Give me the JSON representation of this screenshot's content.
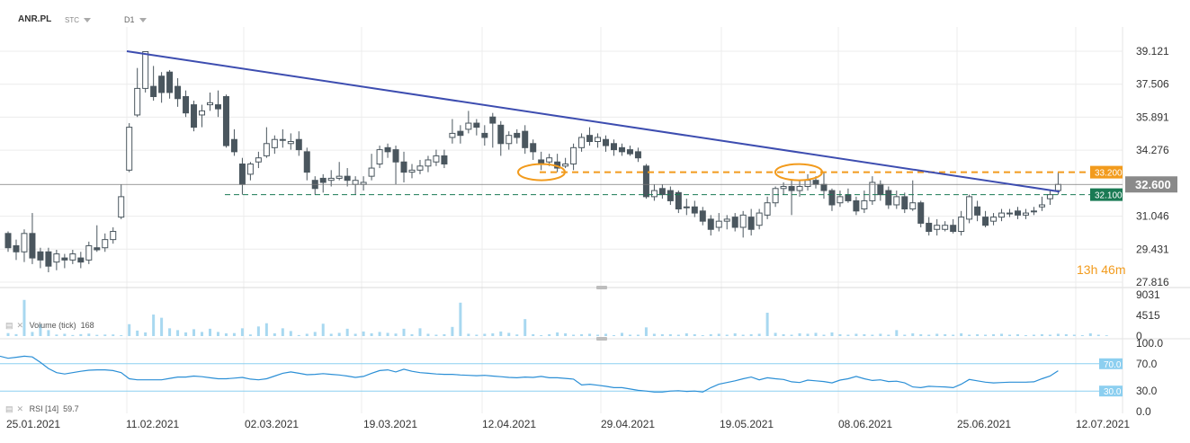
{
  "header": {
    "symbol": "ANR.PL",
    "type": "STC",
    "timeframe": "D1"
  },
  "countdown": {
    "hours": "13",
    "h_unit": "h",
    "minutes": "46",
    "m_unit": "m"
  },
  "volume_label": {
    "name": "Volume",
    "param": "(tick)",
    "value": "168"
  },
  "rsi_label": {
    "name": "RSI",
    "param": "[14]",
    "value": "59.7"
  },
  "colors": {
    "bull_fill": "#ffffff",
    "bear_fill": "#4a565e",
    "candle_stroke": "#4a565e",
    "trendline": "#3d4db0",
    "resistance": "#f29b1d",
    "support": "#1a7a54",
    "last_price_line": "#7a7a7a",
    "volume_bar": "#a8d8f0",
    "rsi_line": "#2b8fd6",
    "rsi_level": "#8ccff0",
    "grid": "#ececec",
    "axis_text": "#333333"
  },
  "chart_data": [
    {
      "type": "candlestick",
      "title": "ANR.PL",
      "price_axis_ticks": [
        "39.121",
        "37.506",
        "35.891",
        "34.276",
        "32.600",
        "31.046",
        "29.431",
        "27.816"
      ],
      "ylim": [
        27.816,
        39.121
      ],
      "x_tick_labels": [
        "25.01.2021",
        "11.02.2021",
        "02.03.2021",
        "19.03.2021",
        "12.04.2021",
        "29.04.2021",
        "19.05.2021",
        "08.06.2021",
        "25.06.2021",
        "12.07.2021"
      ],
      "last_price": "32.600",
      "levels": [
        {
          "name": "resistance",
          "value": 33.2,
          "label": "33.200",
          "style": "dashed"
        },
        {
          "name": "support",
          "value": 32.1,
          "label": "32.100",
          "style": "dashed"
        }
      ],
      "trendline": {
        "from": {
          "date": "10.02.2021",
          "value": 39.121
        },
        "to": {
          "date": "02.07.2021",
          "value": 32.25
        }
      },
      "highlights": [
        {
          "date": "16.04.2021",
          "value": 33.2
        },
        {
          "date": "25.05.2021",
          "value": 33.2
        }
      ],
      "candles": [
        [
          30.2,
          29.5,
          30.3,
          29.3
        ],
        [
          29.6,
          29.3,
          29.9,
          28.9
        ],
        [
          29.3,
          30.2,
          30.4,
          28.8
        ],
        [
          30.2,
          29.0,
          31.2,
          28.7
        ],
        [
          29.3,
          28.9,
          29.5,
          28.5
        ],
        [
          29.3,
          28.6,
          29.5,
          28.3
        ],
        [
          28.8,
          29.2,
          29.4,
          28.4
        ],
        [
          29.0,
          28.9,
          29.2,
          28.5
        ],
        [
          28.9,
          29.2,
          29.4,
          28.7
        ],
        [
          29.0,
          28.8,
          29.3,
          28.5
        ],
        [
          28.9,
          29.6,
          29.8,
          28.7
        ],
        [
          29.5,
          29.4,
          30.6,
          29.3
        ],
        [
          29.5,
          29.9,
          30.2,
          29.3
        ],
        [
          29.9,
          30.3,
          30.5,
          29.7
        ],
        [
          31.0,
          32.0,
          32.6,
          30.9
        ],
        [
          33.3,
          35.4,
          35.6,
          33.2
        ],
        [
          36.0,
          37.3,
          38.3,
          35.9
        ],
        [
          37.3,
          39.1,
          39.1,
          37.1
        ],
        [
          37.4,
          36.9,
          38.4,
          36.7
        ],
        [
          37.9,
          37.1,
          38.1,
          36.6
        ],
        [
          38.1,
          37.1,
          38.2,
          36.8
        ],
        [
          37.4,
          36.8,
          37.8,
          36.4
        ],
        [
          36.9,
          36.1,
          37.2,
          35.9
        ],
        [
          36.5,
          35.4,
          36.7,
          35.2
        ],
        [
          36.0,
          36.2,
          36.5,
          35.4
        ],
        [
          36.5,
          36.6,
          37.1,
          36.2
        ],
        [
          36.5,
          36.3,
          37.2,
          35.9
        ],
        [
          36.9,
          34.5,
          37.0,
          34.4
        ],
        [
          34.8,
          34.2,
          35.3,
          34.0
        ],
        [
          33.6,
          32.6,
          33.9,
          32.1
        ],
        [
          33.1,
          33.6,
          33.7,
          32.8
        ],
        [
          33.7,
          33.9,
          34.2,
          33.4
        ],
        [
          34.0,
          34.6,
          35.4,
          33.9
        ],
        [
          34.4,
          34.8,
          35.0,
          34.1
        ],
        [
          34.8,
          34.8,
          35.3,
          34.4
        ],
        [
          34.6,
          34.7,
          35.1,
          34.3
        ],
        [
          34.8,
          34.3,
          35.2,
          34.0
        ],
        [
          34.2,
          33.2,
          34.4,
          32.8
        ],
        [
          32.8,
          32.4,
          33.0,
          32.1
        ],
        [
          32.9,
          32.7,
          33.1,
          32.2
        ],
        [
          32.8,
          32.9,
          33.3,
          32.5
        ],
        [
          32.9,
          33.0,
          33.7,
          32.8
        ],
        [
          33.0,
          32.8,
          33.4,
          32.5
        ],
        [
          32.6,
          32.8,
          33.0,
          32.1
        ],
        [
          32.6,
          32.7,
          33.0,
          32.3
        ],
        [
          33.0,
          33.4,
          34.1,
          32.8
        ],
        [
          33.6,
          34.3,
          34.5,
          33.4
        ],
        [
          34.4,
          34.2,
          34.6,
          33.9
        ],
        [
          34.3,
          33.7,
          34.5,
          32.6
        ],
        [
          33.7,
          33.2,
          34.2,
          32.7
        ],
        [
          33.2,
          33.3,
          33.6,
          32.9
        ],
        [
          33.3,
          33.5,
          33.8,
          33.1
        ],
        [
          33.5,
          33.8,
          34.0,
          33.2
        ],
        [
          33.7,
          34.0,
          34.3,
          33.5
        ],
        [
          34.0,
          33.6,
          34.3,
          33.4
        ],
        [
          34.9,
          35.1,
          35.8,
          34.6
        ],
        [
          35.2,
          35.0,
          35.5,
          34.6
        ],
        [
          35.3,
          35.6,
          36.2,
          35.1
        ],
        [
          35.6,
          35.4,
          35.8,
          35.0
        ],
        [
          35.1,
          34.9,
          35.5,
          34.5
        ],
        [
          35.9,
          35.6,
          36.1,
          34.4
        ],
        [
          35.5,
          34.6,
          35.7,
          34.0
        ],
        [
          34.6,
          35.0,
          35.2,
          34.3
        ],
        [
          35.1,
          34.9,
          35.3,
          34.6
        ],
        [
          35.2,
          34.4,
          35.5,
          34.1
        ],
        [
          34.6,
          34.2,
          34.8,
          33.8
        ],
        [
          33.8,
          33.6,
          34.2,
          33.3
        ],
        [
          33.7,
          33.9,
          34.1,
          33.5
        ],
        [
          33.7,
          33.4,
          34.1,
          33.2
        ],
        [
          33.5,
          33.6,
          33.9,
          33.4
        ],
        [
          33.6,
          34.4,
          34.6,
          33.3
        ],
        [
          34.4,
          34.9,
          35.1,
          34.2
        ],
        [
          35.0,
          34.7,
          35.4,
          34.5
        ],
        [
          34.7,
          34.9,
          35.1,
          34.4
        ],
        [
          34.8,
          34.5,
          35.0,
          34.2
        ],
        [
          34.6,
          34.3,
          34.8,
          34.0
        ],
        [
          34.4,
          34.2,
          34.6,
          34.0
        ],
        [
          34.3,
          34.1,
          34.5,
          34.0
        ],
        [
          34.2,
          33.9,
          34.4,
          33.7
        ],
        [
          33.5,
          32.0,
          33.6,
          31.9
        ],
        [
          32.0,
          32.3,
          32.6,
          31.8
        ],
        [
          32.4,
          32.1,
          32.6,
          31.9
        ],
        [
          32.3,
          31.8,
          32.5,
          31.6
        ],
        [
          32.2,
          31.4,
          32.3,
          31.2
        ],
        [
          31.5,
          31.5,
          31.9,
          31.1
        ],
        [
          31.5,
          31.2,
          31.8,
          31.0
        ],
        [
          31.3,
          30.8,
          31.5,
          30.6
        ],
        [
          30.9,
          30.4,
          31.1,
          30.1
        ],
        [
          30.5,
          30.8,
          31.2,
          30.3
        ],
        [
          30.8,
          30.9,
          31.1,
          30.4
        ],
        [
          31.0,
          30.5,
          31.2,
          30.3
        ],
        [
          30.5,
          31.1,
          31.3,
          30.0
        ],
        [
          31.0,
          30.4,
          31.4,
          30.1
        ],
        [
          30.6,
          31.2,
          31.4,
          30.4
        ],
        [
          31.1,
          31.7,
          32.0,
          30.9
        ],
        [
          31.7,
          32.4,
          32.5,
          31.5
        ],
        [
          32.4,
          32.5,
          32.7,
          32.1
        ],
        [
          32.5,
          32.3,
          32.8,
          31.1
        ],
        [
          32.3,
          32.5,
          32.8,
          32.0
        ],
        [
          32.5,
          32.8,
          33.1,
          32.3
        ],
        [
          32.8,
          32.6,
          33.0,
          32.4
        ],
        [
          32.6,
          32.3,
          33.2,
          31.9
        ],
        [
          32.3,
          31.6,
          32.4,
          31.3
        ],
        [
          31.7,
          32.0,
          32.3,
          31.5
        ],
        [
          32.1,
          31.8,
          32.4,
          31.7
        ],
        [
          31.8,
          31.3,
          32.0,
          31.1
        ],
        [
          31.4,
          31.8,
          32.3,
          31.2
        ],
        [
          31.8,
          32.7,
          33.0,
          31.6
        ],
        [
          32.6,
          32.1,
          32.8,
          31.8
        ],
        [
          32.3,
          31.6,
          32.5,
          31.4
        ],
        [
          31.6,
          32.0,
          32.3,
          31.4
        ],
        [
          32.0,
          31.4,
          32.2,
          31.2
        ],
        [
          31.4,
          31.7,
          32.8,
          31.3
        ],
        [
          31.7,
          30.7,
          31.8,
          30.5
        ],
        [
          30.7,
          30.3,
          31.0,
          30.1
        ],
        [
          30.4,
          30.6,
          30.9,
          30.1
        ],
        [
          30.4,
          30.6,
          30.8,
          30.3
        ],
        [
          30.6,
          30.3,
          30.9,
          30.2
        ],
        [
          30.3,
          31.0,
          31.3,
          30.1
        ],
        [
          30.9,
          32.0,
          32.1,
          30.7
        ],
        [
          31.5,
          31.1,
          31.8,
          30.8
        ],
        [
          31.0,
          30.6,
          31.3,
          30.5
        ],
        [
          30.8,
          31.0,
          31.2,
          30.6
        ],
        [
          31.0,
          31.2,
          31.4,
          30.8
        ],
        [
          31.2,
          31.2,
          31.4,
          31.0
        ],
        [
          31.3,
          31.1,
          31.5,
          30.9
        ],
        [
          31.1,
          31.2,
          31.4,
          30.9
        ],
        [
          31.3,
          31.3,
          31.5,
          31.1
        ],
        [
          31.5,
          31.6,
          32.0,
          31.3
        ],
        [
          31.9,
          32.1,
          32.3,
          31.6
        ],
        [
          32.3,
          32.6,
          33.2,
          32.1
        ]
      ]
    },
    {
      "type": "bar",
      "title": "Volume (tick)",
      "y_tick_labels": [
        "9031",
        "4515",
        "0"
      ],
      "ylim": [
        0,
        9031
      ],
      "values": [
        650,
        420,
        7900,
        900,
        2600,
        1300,
        330,
        500,
        230,
        420,
        540,
        270,
        330,
        350,
        190,
        2600,
        1200,
        800,
        4700,
        4000,
        1700,
        1300,
        800,
        1500,
        900,
        1600,
        900,
        600,
        650,
        1700,
        350,
        2100,
        2800,
        600,
        1700,
        1100,
        220,
        500,
        900,
        2700,
        500,
        700,
        1600,
        500,
        1000,
        600,
        900,
        700,
        550,
        1600,
        400,
        1700,
        500,
        300,
        400,
        2000,
        7300,
        500,
        300,
        500,
        600,
        1000,
        700,
        350,
        3700,
        400,
        200,
        400,
        800,
        600,
        300,
        400,
        500,
        300,
        500,
        200,
        700,
        300,
        300,
        1900,
        500,
        400,
        400,
        300,
        600,
        400,
        200,
        400,
        500,
        300,
        600,
        300,
        400,
        500,
        5100,
        700,
        400,
        300,
        600,
        500,
        700,
        300,
        800,
        400,
        300,
        500,
        400,
        300,
        500,
        300,
        1300,
        300,
        600,
        400,
        300,
        500,
        400,
        300,
        600,
        300,
        400,
        300,
        400,
        500,
        300,
        400,
        200,
        300,
        400,
        300,
        500,
        400,
        300,
        200,
        600,
        300,
        168
      ]
    },
    {
      "type": "line",
      "title": "RSI [14]",
      "y_tick_labels": [
        "100.0",
        "70.0",
        "30.0",
        "0.0"
      ],
      "ylim": [
        0,
        100
      ],
      "levels": [
        70,
        30
      ],
      "last_value": "59.7",
      "values": [
        93.5,
        93.5,
        93.0,
        90.0,
        88.0,
        84.5,
        81.0,
        78.0,
        79.5,
        81.0,
        80.0,
        72.0,
        63.0,
        57.0,
        55.0,
        57.0,
        59.0,
        60.5,
        61.0,
        61.0,
        60.0,
        57.0,
        48.0,
        46.5,
        46.5,
        46.5,
        46.5,
        48.5,
        50.5,
        50.5,
        52.0,
        51.0,
        49.5,
        48.0,
        48.0,
        49.0,
        50.0,
        47.5,
        46.5,
        48.0,
        52.0,
        56.0,
        58.0,
        56.0,
        54.0,
        54.5,
        55.5,
        54.5,
        53.5,
        52.0,
        50.0,
        51.5,
        56.0,
        60.0,
        61.0,
        58.0,
        62.0,
        59.0,
        57.0,
        56.0,
        55.0,
        54.5,
        54.5,
        53.5,
        53.0,
        52.5,
        53.0,
        52.0,
        51.0,
        50.0,
        49.5,
        50.5,
        50.0,
        51.5,
        49.5,
        49.5,
        48.5,
        47.5,
        39.0,
        40.0,
        38.5,
        37.0,
        35.0,
        35.0,
        33.0,
        31.0,
        30.0,
        28.5,
        28.5,
        30.0,
        30.5,
        29.5,
        30.0,
        28.5,
        35.0,
        40.0,
        42.5,
        45.0,
        48.0,
        50.5,
        46.5,
        49.5,
        48.0,
        47.0,
        43.5,
        42.5,
        46.0,
        45.0,
        44.0,
        42.0,
        46.0,
        48.0,
        51.5,
        48.0,
        45.5,
        46.5,
        44.0,
        44.5,
        42.0,
        36.0,
        35.0,
        37.0,
        36.5,
        36.0,
        35.0,
        40.0,
        47.0,
        45.0,
        43.0,
        42.0,
        42.5,
        43.0,
        43.0,
        43.0,
        43.5,
        48.0,
        52.0,
        59.7
      ]
    }
  ]
}
